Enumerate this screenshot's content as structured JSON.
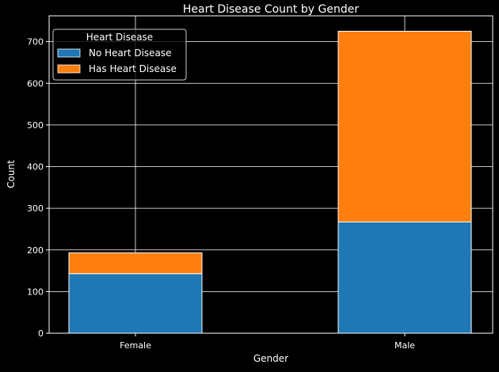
{
  "chart_data": {
    "type": "bar",
    "stacked": true,
    "title": "Heart Disease Count by Gender",
    "xlabel": "Gender",
    "ylabel": "Count",
    "categories": [
      "Female",
      "Male"
    ],
    "series": [
      {
        "name": "No Heart Disease",
        "values": [
          143,
          267
        ],
        "color": "#1f77b4"
      },
      {
        "name": "Has Heart Disease",
        "values": [
          50,
          458
        ],
        "color": "#ff7f0e"
      }
    ],
    "ylim": [
      0,
      762
    ],
    "yticks": [
      0,
      100,
      200,
      300,
      400,
      500,
      600,
      700
    ],
    "grid": true,
    "legend": {
      "title": "Heart Disease",
      "position": "top-left"
    },
    "background": "#000000",
    "foreground": "#ffffff"
  }
}
